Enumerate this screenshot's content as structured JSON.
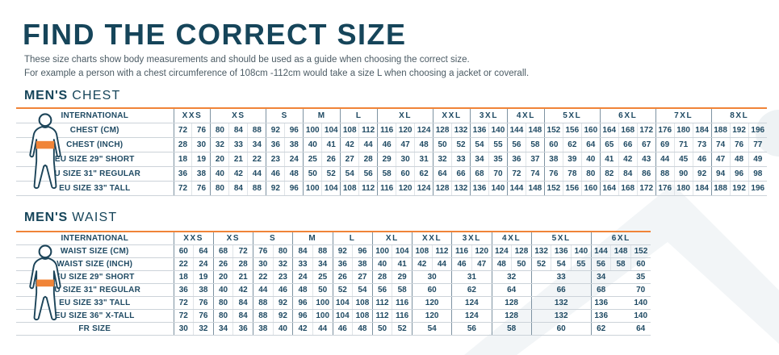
{
  "page": {
    "title": "FIND THE CORRECT SIZE",
    "subtitle_line1": "These size charts show body measurements and should be used as a guide when choosing the correct size.",
    "subtitle_line2": "For example a person with a chest circumference of 108cm -112cm would take a size L when choosing a jacket or coverall."
  },
  "colors": {
    "accent_orange": "#f08438",
    "heading_teal": "#16455a",
    "table_text": "#1f4a63",
    "group_line": "#7e93a2",
    "light_line": "#dfe4e8",
    "watermark": "#f2f5f7"
  },
  "icons": {
    "chest_figure": "male-silhouette-chest-band",
    "waist_figure": "male-silhouette-waist-band"
  },
  "chest": {
    "heading_bold": "MEN'S",
    "heading_rest": "CHEST",
    "header_label": "INTERNATIONAL",
    "sizes": [
      {
        "label": "XXS",
        "span": 2
      },
      {
        "label": "XS",
        "span": 3
      },
      {
        "label": "S",
        "span": 2
      },
      {
        "label": "M",
        "span": 2
      },
      {
        "label": "L",
        "span": 2
      },
      {
        "label": "XL",
        "span": 3
      },
      {
        "label": "XXL",
        "span": 2
      },
      {
        "label": "3XL",
        "span": 2
      },
      {
        "label": "4XL",
        "span": 2
      },
      {
        "label": "5XL",
        "span": 3
      },
      {
        "label": "6XL",
        "span": 3
      },
      {
        "label": "7XL",
        "span": 3
      },
      {
        "label": "8XL",
        "span": 3
      }
    ],
    "rows": [
      {
        "label": "CHEST (CM)",
        "values": [
          72,
          76,
          80,
          84,
          88,
          92,
          96,
          100,
          104,
          108,
          112,
          116,
          120,
          124,
          128,
          132,
          136,
          140,
          144,
          148,
          152,
          156,
          160,
          164,
          168,
          172,
          176,
          180,
          184,
          188,
          192,
          196
        ]
      },
      {
        "label": "CHEST (INCH)",
        "values": [
          28,
          30,
          32,
          33,
          34,
          36,
          38,
          40,
          41,
          42,
          44,
          46,
          47,
          48,
          50,
          52,
          54,
          55,
          56,
          58,
          60,
          62,
          64,
          65,
          66,
          67,
          69,
          71,
          73,
          74,
          76,
          77
        ]
      },
      {
        "label": "EU SIZE 29\" SHORT",
        "values": [
          18,
          19,
          20,
          21,
          22,
          23,
          24,
          25,
          26,
          27,
          28,
          29,
          30,
          31,
          32,
          33,
          34,
          35,
          36,
          37,
          38,
          39,
          40,
          41,
          42,
          43,
          44,
          45,
          46,
          47,
          48,
          49
        ]
      },
      {
        "label": "EU SIZE 31\" REGULAR",
        "values": [
          36,
          38,
          40,
          42,
          44,
          46,
          48,
          50,
          52,
          54,
          56,
          58,
          60,
          62,
          64,
          66,
          68,
          70,
          72,
          74,
          76,
          78,
          80,
          82,
          84,
          86,
          88,
          90,
          92,
          94,
          96,
          98
        ]
      },
      {
        "label": "EU SIZE 33\" TALL",
        "values": [
          72,
          76,
          80,
          84,
          88,
          92,
          96,
          100,
          104,
          108,
          112,
          116,
          120,
          124,
          128,
          132,
          136,
          140,
          144,
          148,
          152,
          156,
          160,
          164,
          168,
          172,
          176,
          180,
          184,
          188,
          192,
          196
        ]
      }
    ]
  },
  "waist": {
    "heading_bold": "MEN'S",
    "heading_rest": "WAIST",
    "header_label": "INTERNATIONAL",
    "sizes": [
      {
        "label": "XXS",
        "span": 2
      },
      {
        "label": "XS",
        "span": 2
      },
      {
        "label": "S",
        "span": 2
      },
      {
        "label": "M",
        "span": 2
      },
      {
        "label": "L",
        "span": 2
      },
      {
        "label": "XL",
        "span": 2
      },
      {
        "label": "XXL",
        "span": 2
      },
      {
        "label": "3XL",
        "span": 2
      },
      {
        "label": "4XL",
        "span": 2
      },
      {
        "label": "5XL",
        "span": 3
      },
      {
        "label": "6XL",
        "span": 3
      }
    ],
    "rows": [
      {
        "label": "WAIST SIZE (CM)",
        "values": [
          60,
          64,
          68,
          72,
          76,
          80,
          84,
          88,
          92,
          96,
          100,
          104,
          108,
          112,
          116,
          120,
          124,
          128,
          132,
          136,
          140,
          144,
          148,
          152
        ]
      },
      {
        "label": "WAIST SIZE (INCH)",
        "values": [
          22,
          24,
          26,
          28,
          30,
          32,
          33,
          34,
          36,
          38,
          40,
          41,
          42,
          44,
          46,
          47,
          48,
          50,
          52,
          54,
          55,
          56,
          58,
          60
        ]
      },
      {
        "label": "EU SIZE 29\" SHORT",
        "values": [
          18,
          19,
          20,
          21,
          22,
          23,
          24,
          25,
          26,
          27,
          28,
          29,
          30,
          31,
          32,
          33,
          34,
          "",
          35
        ],
        "spans": [
          1,
          1,
          1,
          1,
          1,
          1,
          1,
          1,
          1,
          1,
          1,
          1,
          2,
          2,
          2,
          3,
          1,
          1,
          1
        ]
      },
      {
        "label": "EU SIZE 31\" REGULAR",
        "values": [
          36,
          38,
          40,
          42,
          44,
          46,
          48,
          50,
          52,
          54,
          56,
          58,
          60,
          62,
          64,
          66,
          68,
          "",
          70
        ],
        "spans": [
          1,
          1,
          1,
          1,
          1,
          1,
          1,
          1,
          1,
          1,
          1,
          1,
          2,
          2,
          2,
          3,
          1,
          1,
          1
        ]
      },
      {
        "label": "EU SIZE 33\" TALL",
        "values": [
          72,
          76,
          80,
          84,
          88,
          92,
          96,
          100,
          104,
          108,
          112,
          116,
          120,
          124,
          128,
          132,
          136,
          "",
          140
        ],
        "spans": [
          1,
          1,
          1,
          1,
          1,
          1,
          1,
          1,
          1,
          1,
          1,
          1,
          2,
          2,
          2,
          3,
          1,
          1,
          1
        ]
      },
      {
        "label": "EU SIZE 36\" X-TALL",
        "values": [
          72,
          76,
          80,
          84,
          88,
          92,
          96,
          100,
          104,
          108,
          112,
          116,
          120,
          124,
          128,
          132,
          136,
          "",
          140
        ],
        "spans": [
          1,
          1,
          1,
          1,
          1,
          1,
          1,
          1,
          1,
          1,
          1,
          1,
          2,
          2,
          2,
          3,
          1,
          1,
          1
        ]
      },
      {
        "label": "FR SIZE",
        "values": [
          30,
          32,
          34,
          36,
          38,
          40,
          42,
          44,
          46,
          48,
          50,
          52,
          54,
          56,
          58,
          60,
          62,
          "",
          64
        ],
        "spans": [
          1,
          1,
          1,
          1,
          1,
          1,
          1,
          1,
          1,
          1,
          1,
          1,
          2,
          2,
          2,
          3,
          1,
          1,
          1
        ]
      }
    ]
  }
}
